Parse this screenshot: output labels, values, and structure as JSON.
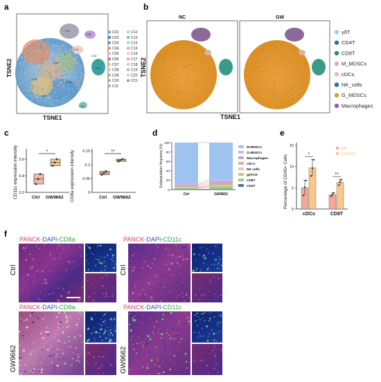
{
  "panels": {
    "a": "a",
    "b": "b",
    "c": "c",
    "d": "d",
    "e": "e",
    "f": "f"
  },
  "tsne": {
    "xlabel": "TSNE1",
    "ylabel": "TSNE2",
    "clusters": [
      "C01",
      "C02",
      "C03",
      "C04",
      "C05",
      "C06",
      "C07",
      "C08",
      "C09",
      "C10",
      "C11",
      "C12",
      "C13",
      "C14",
      "C15",
      "C16",
      "C17",
      "C18",
      "C19",
      "C20",
      "C21"
    ],
    "cluster_colors": [
      "#5ba8d8",
      "#2f7fb8",
      "#4ea0a0",
      "#e6906e",
      "#f2b8a8",
      "#c96f7e",
      "#e8b47f",
      "#d8d08a",
      "#9fbf7a",
      "#7fbfb8",
      "#b9a6d4",
      "#a8c8e8",
      "#6fb0d0",
      "#8fd0c0",
      "#e8a090",
      "#f0c0b0",
      "#c8a0c8",
      "#d0b8e0",
      "#90b8d8",
      "#b8d8a8",
      "#9890c8"
    ],
    "cluster_labels_on_plot": [
      "C11",
      "C15",
      "C19",
      "C18",
      "C17",
      "C13",
      "C14",
      "C21",
      "C20",
      "C16"
    ],
    "celltypes": [
      "γδT",
      "CD4T",
      "CD8T",
      "M_MDSCs",
      "cDCs",
      "NK_cells",
      "G_MDSCs",
      "Macrophages"
    ],
    "celltype_colors": [
      "#a6cee3",
      "#1f78b4",
      "#2e8b57",
      "#d8b0a8",
      "#e0c0b8",
      "#2a6fa8",
      "#d4a020",
      "#8a5fb8"
    ],
    "groups": [
      "NC",
      "GW"
    ]
  },
  "chart_data": [
    {
      "type": "scatter",
      "title": "",
      "xlabel": "",
      "ylabel": "CD11c expression intensity",
      "categories": [
        "Ctrl",
        "GW9662"
      ],
      "ylim": [
        0.2,
        0.7
      ],
      "yticks": [
        0.2,
        0.4,
        0.6
      ],
      "values": [
        [
          0.3,
          0.36,
          0.42
        ],
        [
          0.52,
          0.56,
          0.6
        ]
      ],
      "significance": "*"
    },
    {
      "type": "scatter",
      "title": "",
      "xlabel": "",
      "ylabel": "CD8a expression intensity",
      "categories": [
        "Ctrl",
        "GW9662"
      ],
      "ylim": [
        0.0,
        0.15
      ],
      "yticks": [
        0.0,
        0.05,
        0.1,
        0.15
      ],
      "values": [
        [
          0.064,
          0.07,
          0.076
        ],
        [
          0.112,
          0.117,
          0.12
        ]
      ],
      "significance": "**"
    },
    {
      "type": "bar",
      "stacked": true,
      "xlabel": "",
      "ylabel": "Subpopulation frequency (%)",
      "categories": [
        "Ctrl",
        "GW9662"
      ],
      "ylim": [
        0,
        100
      ],
      "yticks": [
        0,
        20,
        40,
        60,
        80,
        100
      ],
      "series": [
        {
          "name": "CD4T",
          "values": [
            1,
            1
          ]
        },
        {
          "name": "CD8T",
          "values": [
            2,
            5
          ]
        },
        {
          "name": "gdTCR",
          "values": [
            1,
            2
          ]
        },
        {
          "name": "NK cells",
          "values": [
            1,
            1
          ]
        },
        {
          "name": "cDCs",
          "values": [
            3,
            4
          ]
        },
        {
          "name": "Macrophages",
          "values": [
            2,
            4
          ]
        },
        {
          "name": "G-MDSCs",
          "values": [
            2,
            5
          ]
        },
        {
          "name": "M-MDSCs",
          "values": [
            88,
            78
          ]
        }
      ],
      "legend_order": [
        "M-MDSCs",
        "G-MDSCs",
        "Macrophages",
        "cDCs",
        "NK cells",
        "gdTCR",
        "CD8T",
        "CD4T"
      ],
      "colors": {
        "M-MDSCs": "#9ec3ee",
        "G-MDSCs": "#c6b8e6",
        "Macrophages": "#b7a6dc",
        "cDCs": "#e6a88c",
        "NK cells": "#f0c0cc",
        "gdTCR": "#b8d070",
        "CD8T": "#8fcf8f",
        "CD4T": "#4a6fb0"
      }
    },
    {
      "type": "bar",
      "xlabel": "",
      "ylabel": "Percentage of CD45+ Cells",
      "categories": [
        "cDCs",
        "CD8T"
      ],
      "ylim": [
        0,
        15
      ],
      "yticks": [
        0,
        5,
        10,
        15
      ],
      "series": [
        {
          "name": "Ctrl",
          "values": [
            5,
            3.4
          ]
        },
        {
          "name": "GW9662",
          "values": [
            9.7,
            6.3
          ]
        }
      ],
      "errors": [
        [
          1.8,
          0.4
        ],
        [
          2.0,
          0.7
        ]
      ],
      "points": [
        [
          [
            3.2,
            5.1,
            6.7
          ],
          [
            3.0,
            3.4,
            3.8
          ]
        ],
        [
          [
            7.8,
            9.6,
            11.6
          ],
          [
            5.6,
            6.4,
            6.9
          ]
        ]
      ],
      "significance": [
        "*",
        "**"
      ],
      "colors": {
        "Ctrl": "#f2a898",
        "GW9662": "#f7c88a"
      }
    }
  ],
  "panel_c": {
    "x1": "Ctrl",
    "x2": "GW9662"
  },
  "panel_e": {
    "legend_ctrl": "Ctrl",
    "legend_gw": "GW9662"
  },
  "micro": {
    "stain_pre": "PANCK-",
    "stain_dapi": "DAPI-",
    "stain_cd8": "CD8a",
    "stain_cd11c": "CD11c",
    "row_ctrl": "Ctrl",
    "row_gw": "GW9662"
  }
}
